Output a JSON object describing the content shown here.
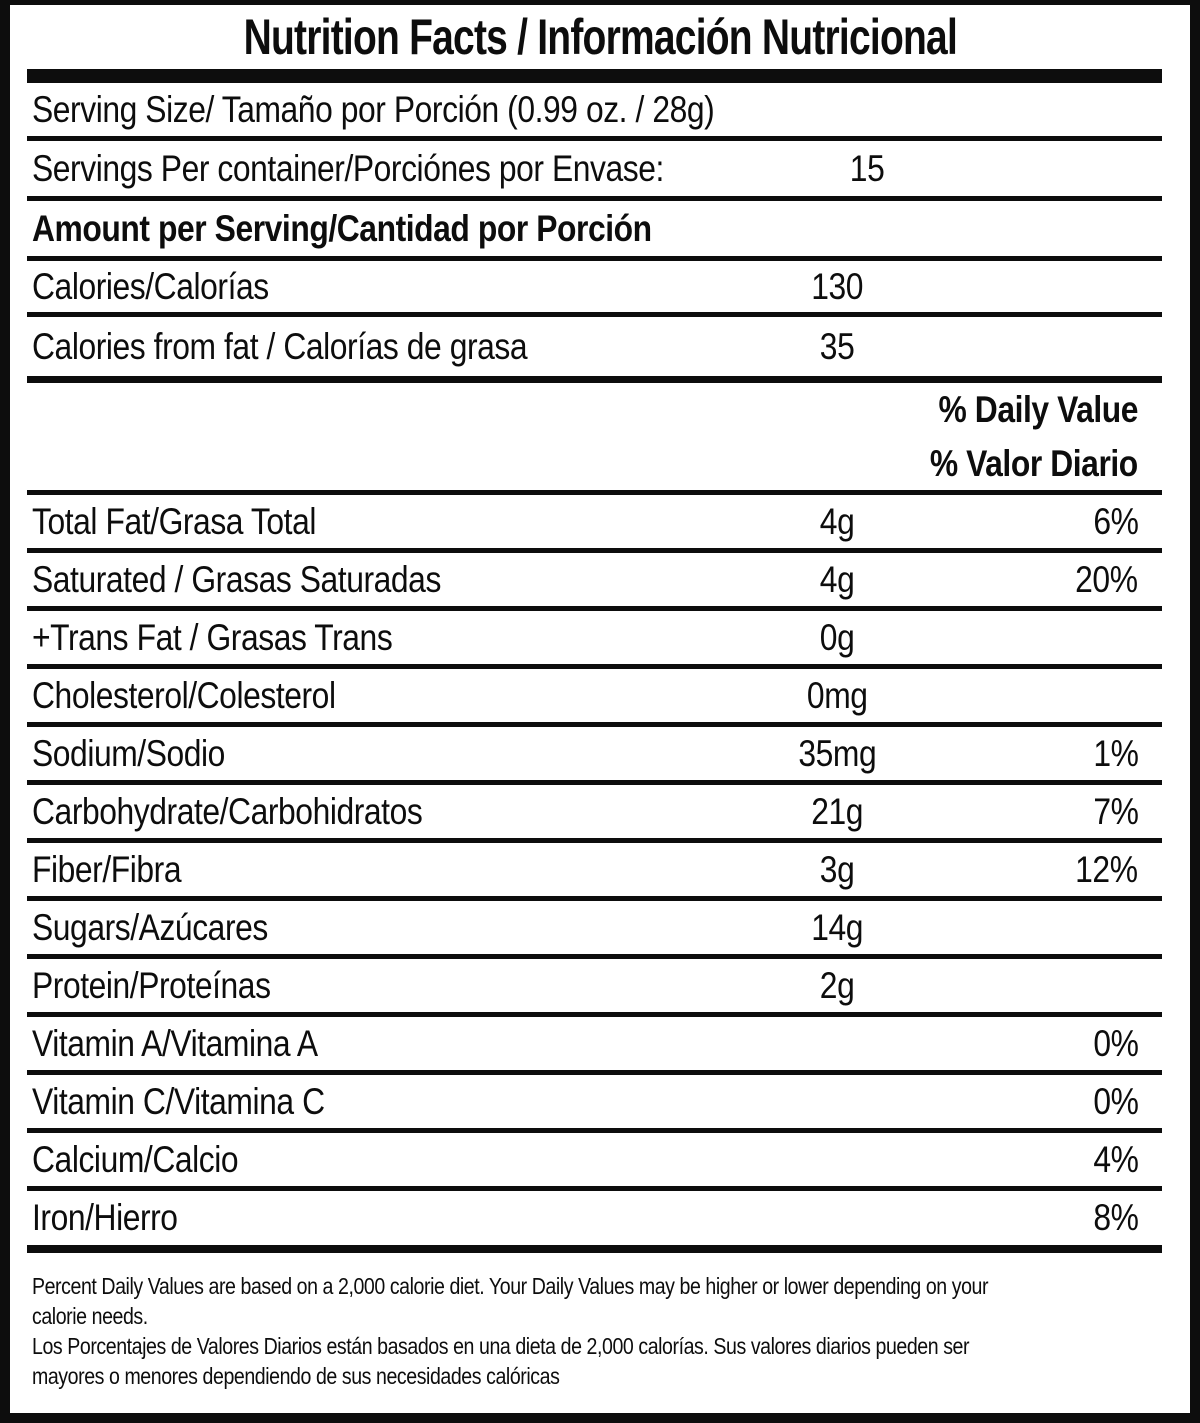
{
  "title": "Nutrition Facts / Información Nutricional",
  "colors": {
    "ink": "#0d0d0d",
    "paper": "#ffffff"
  },
  "serving_info": {
    "serving_size_label": "Serving Size/ Tamaño por Porción (0.99 oz. / 28g)",
    "servings_per_container_label": "Servings Per container/Porciónes por Envase:",
    "servings_per_container_value": "15",
    "amount_per_serving_label": "Amount per Serving/Cantidad por Porción",
    "calories_label": "Calories/Calorías",
    "calories_value": "130",
    "calories_from_fat_label": "Calories from fat / Calorías de grasa",
    "calories_from_fat_value": "35"
  },
  "daily_value_header": {
    "en": "% Daily Value",
    "es": "% Valor Diario"
  },
  "nutrients": [
    {
      "label": "Total Fat/Grasa Total",
      "amount": "4g",
      "dv": "6%"
    },
    {
      "label": "Saturated / Grasas Saturadas",
      "amount": "4g",
      "dv": "20%"
    },
    {
      "label": "+Trans Fat / Grasas Trans",
      "amount": "0g"
    },
    {
      "label": "Cholesterol/Colesterol",
      "amount": "0mg"
    },
    {
      "label": "Sodium/Sodio",
      "amount": "35mg",
      "dv": "1%"
    },
    {
      "label": "Carbohydrate/Carbohidratos",
      "amount": "21g",
      "dv": "7%"
    },
    {
      "label": "Fiber/Fibra",
      "amount": "3g",
      "dv": "12%"
    },
    {
      "label": "Sugars/Azúcares",
      "amount": "14g"
    },
    {
      "label": "Protein/Proteínas",
      "amount": "2g"
    },
    {
      "label": "Vitamin A/Vitamina A",
      "dv": "0%"
    },
    {
      "label": "Vitamin C/Vitamina C",
      "dv": "0%"
    },
    {
      "label": "Calcium/Calcio",
      "dv": "4%"
    },
    {
      "label": "Iron/Hierro",
      "dv": "8%"
    }
  ],
  "footnote": {
    "lines": [
      "Percent Daily Values are based on a 2,000 calorie diet. Your Daily Values may be higher or lower depending on your",
      "calorie needs.",
      "Los Porcentajes de Valores Diarios están basados en una dieta de 2,000 calorías. Sus valores diarios pueden ser",
      "mayores o menores dependiendo de sus necesidades calóricas"
    ]
  }
}
